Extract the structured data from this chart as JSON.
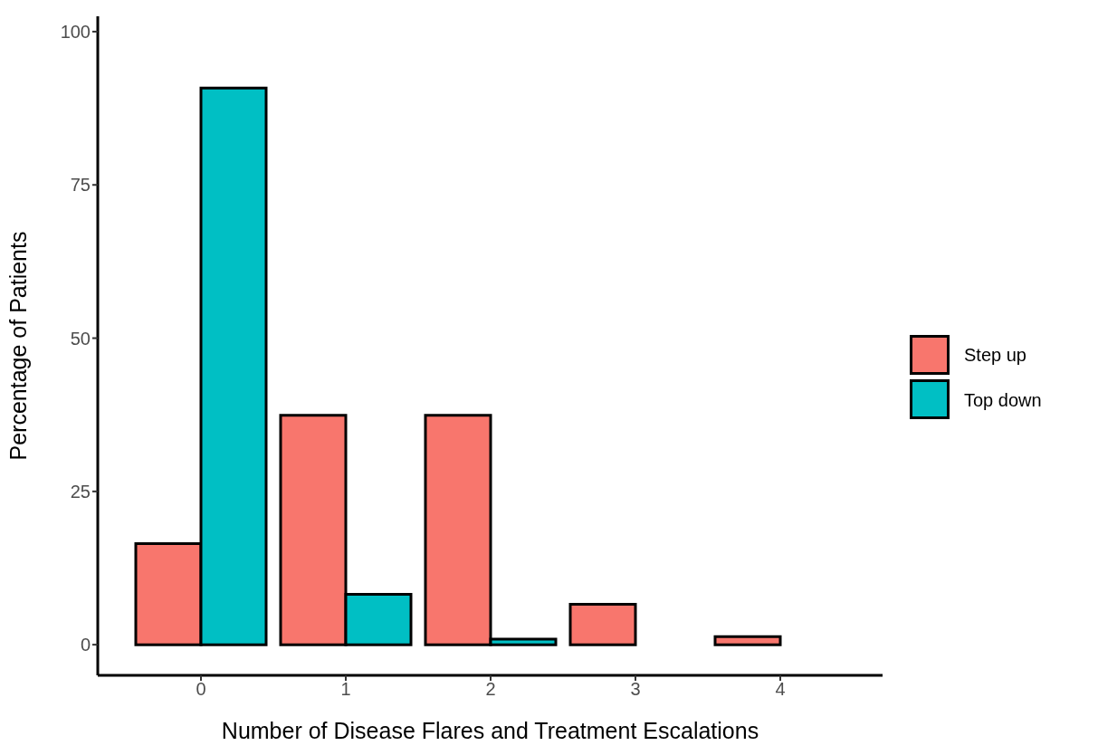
{
  "chart_data": {
    "type": "bar",
    "xlabel": "Number of Disease Flares and Treatment Escalations",
    "ylabel": "Percentage of Patients",
    "categories": [
      "0",
      "1",
      "2",
      "3",
      "4"
    ],
    "series": [
      {
        "name": "Step up",
        "color": "#f8766d",
        "values": [
          16.5,
          37.4,
          37.4,
          6.6,
          1.3
        ]
      },
      {
        "name": "Top down",
        "color": "#00bfc4",
        "values": [
          90.8,
          8.2,
          0.9,
          0,
          0
        ]
      }
    ],
    "ylim": [
      -5,
      102.5
    ],
    "yticks": [
      0,
      25,
      50,
      75,
      100
    ],
    "grid": false,
    "legend": "right"
  }
}
